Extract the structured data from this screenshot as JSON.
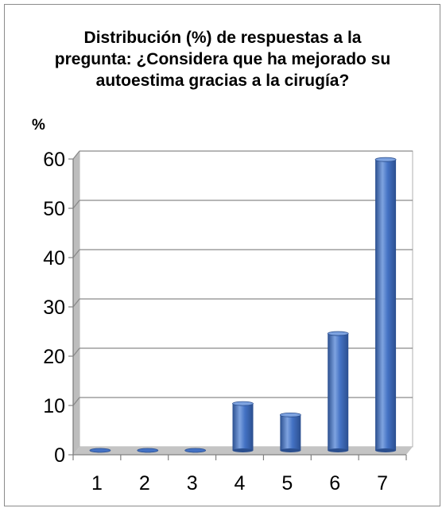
{
  "chart_data": {
    "type": "bar",
    "title": "Distribución (%) de respuestas a la pregunta: ¿Considera que ha mejorado su autoestima gracias a la cirugía?",
    "xlabel": "",
    "ylabel": "%",
    "categories": [
      "1",
      "2",
      "3",
      "4",
      "5",
      "6",
      "7"
    ],
    "values": [
      0,
      0,
      0,
      9.5,
      7.2,
      23.7,
      59
    ],
    "ylim": [
      0,
      60
    ],
    "yticks": [
      "0",
      "10",
      "20",
      "30",
      "40",
      "50",
      "60"
    ],
    "grid": true,
    "legend": "none",
    "colors": {
      "bar": "#4472c4",
      "bar_dark": "#2b4f8f",
      "bar_light": "#7ea3e0",
      "grid": "#8a8a8a",
      "wall": "#ffffff"
    }
  }
}
